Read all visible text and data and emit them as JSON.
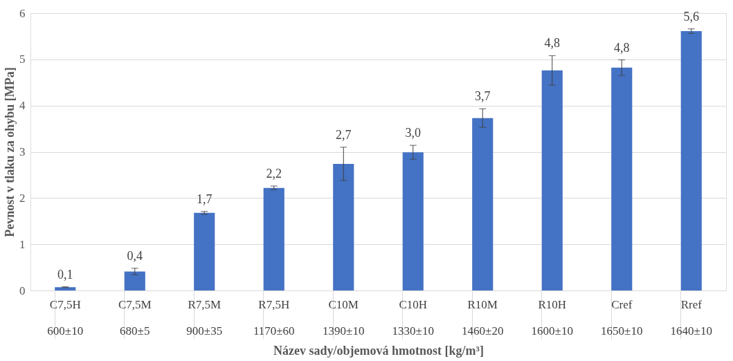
{
  "chart_data": {
    "type": "bar",
    "xlabel": "Název sady/objemová hmotnost [kg/m³]",
    "ylabel": "Pevnost v tlaku za ohybu [MPa]",
    "categories": [
      "C7,5H\n600±10",
      "C7,5M\n680±5",
      "R7,5M\n900±35",
      "R7,5H\n1170±60",
      "C10M\n1390±10",
      "C10H\n1330±10",
      "R10M\n1460±20",
      "R10H\n1600±10",
      "Cref\n1650±10",
      "Rref\n1640±10"
    ],
    "series": [
      {
        "color": "#4472c4",
        "values": [
          0.07,
          0.41,
          1.68,
          2.22,
          2.74,
          2.99,
          3.73,
          4.76,
          4.82,
          5.61
        ],
        "errors": [
          0.01,
          0.07,
          0.03,
          0.04,
          0.36,
          0.15,
          0.2,
          0.32,
          0.17,
          0.05
        ],
        "value_labels": [
          "0,1",
          "0,4",
          "1,7",
          "2,2",
          "2,7",
          "3,0",
          "3,7",
          "4,8",
          "4,8",
          "5,6"
        ]
      }
    ],
    "ylim": [
      0,
      6
    ],
    "yticks": [
      0,
      1,
      2,
      3,
      4,
      5,
      6
    ],
    "grid": "y"
  }
}
